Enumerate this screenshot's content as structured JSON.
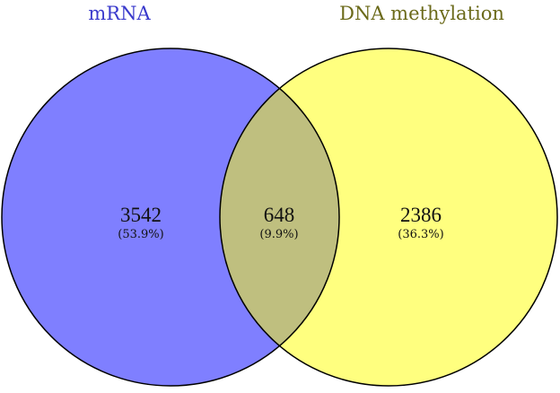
{
  "sets": [
    {
      "name": "mRNA",
      "color": "#7f7fff",
      "label_color": "#3a3acc"
    },
    {
      "name": "DNA methylation",
      "color": "#ffff7f",
      "label_color": "#6b6a1a"
    }
  ],
  "overlap_color": "#bfbf7f",
  "regions": {
    "left_only": {
      "count": "3542",
      "percent": "(53.9%)"
    },
    "intersection": {
      "count": "648",
      "percent": "(9.9%)"
    },
    "right_only": {
      "count": "2386",
      "percent": "(36.3%)"
    }
  }
}
